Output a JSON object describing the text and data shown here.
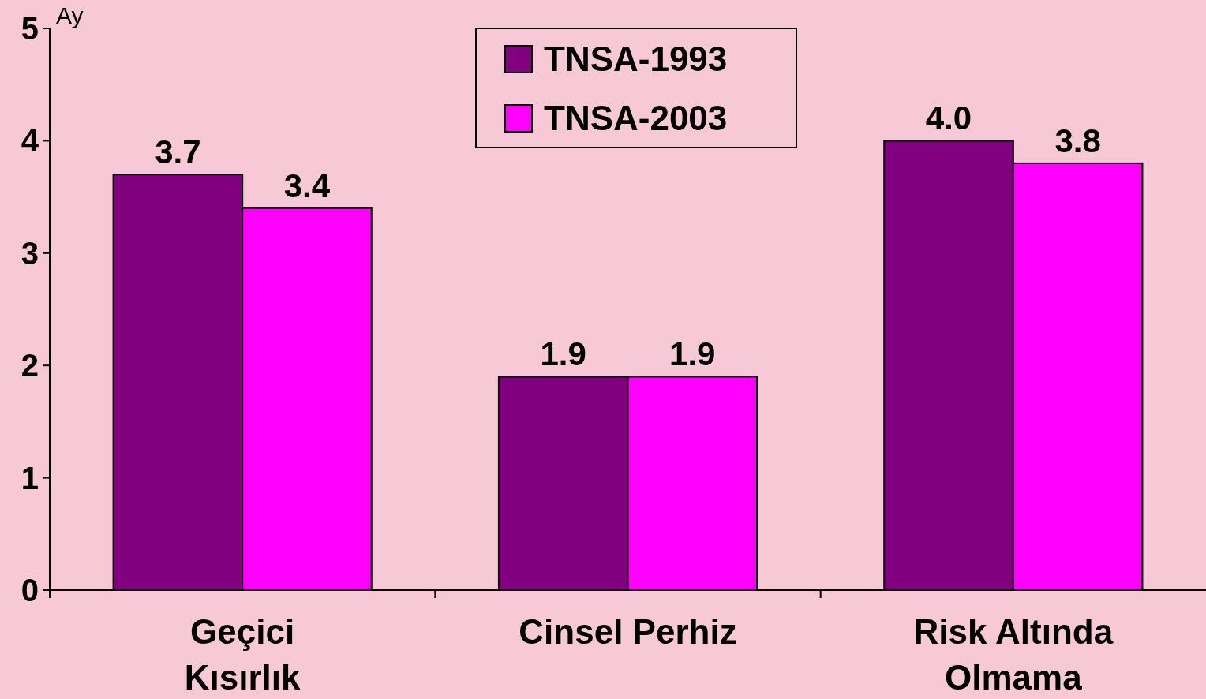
{
  "chart_data": {
    "type": "bar",
    "ylabel": "Ay",
    "categories": [
      "Geçici Kısırlık",
      "Cinsel Perhiz",
      "Risk Altında Olmama"
    ],
    "series": [
      {
        "name": "TNSA-1993",
        "color": "#800080",
        "values": [
          3.7,
          1.9,
          4.0
        ],
        "value_labels": [
          "3.7",
          "1.9",
          "4.0"
        ]
      },
      {
        "name": "TNSA-2003",
        "color": "#ff00ff",
        "values": [
          3.4,
          1.9,
          3.8
        ],
        "value_labels": [
          "3.4",
          "1.9",
          "3.8"
        ]
      }
    ],
    "ylim": [
      0,
      5
    ],
    "yticks": [
      0,
      1,
      2,
      3,
      4,
      5
    ],
    "grid": false,
    "legend": "top"
  }
}
